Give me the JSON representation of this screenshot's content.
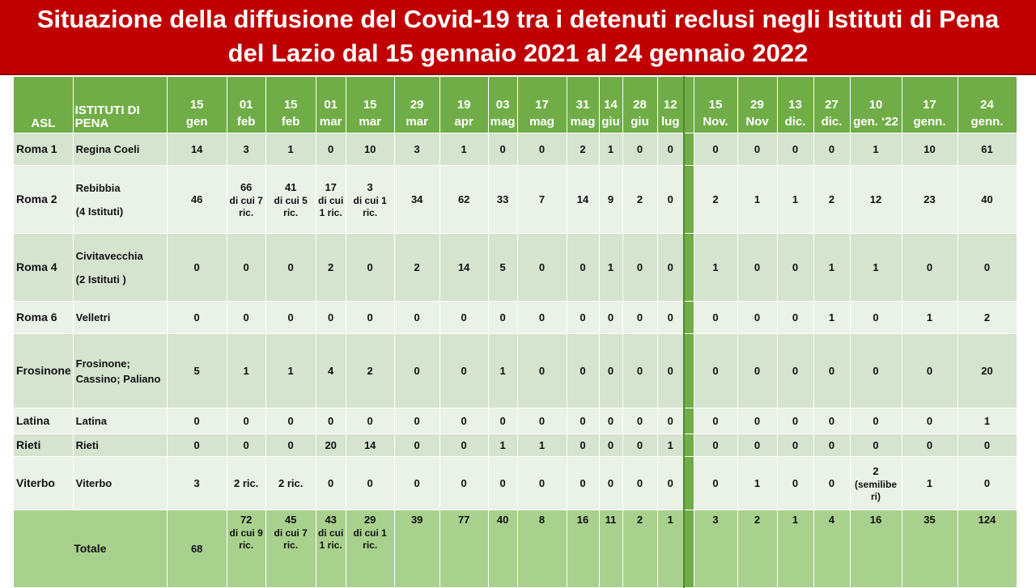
{
  "title": {
    "line1": "Situazione della diffusione del Covid-19 tra i detenuti reclusi negli Istituti di Pena",
    "line2": "del Lazio dal 15 gennaio 2021 al 24 gennaio 2022"
  },
  "colors": {
    "banner": "#c00000",
    "header": "#70ad47",
    "row_dark": "#d5e3cf",
    "row_light": "#eaf1e7",
    "total": "#a9d18e"
  },
  "table": {
    "headers": {
      "asl": "ASL",
      "istituti": "ISTITUTI DI PENA",
      "dates": [
        {
          "d": "15",
          "m": "gen"
        },
        {
          "d": "01",
          "m": "feb"
        },
        {
          "d": "15",
          "m": "feb"
        },
        {
          "d": "01",
          "m": "mar"
        },
        {
          "d": "15",
          "m": "mar"
        },
        {
          "d": "29",
          "m": "mar"
        },
        {
          "d": "19",
          "m": "apr"
        },
        {
          "d": "03",
          "m": "mag"
        },
        {
          "d": "17",
          "m": "mag"
        },
        {
          "d": "31",
          "m": "mag"
        },
        {
          "d": "14",
          "m": "giu"
        },
        {
          "d": "28",
          "m": "giu"
        },
        {
          "d": "12",
          "m": "lug"
        },
        {
          "d": "15",
          "m": "Nov."
        },
        {
          "d": "29",
          "m": "Nov"
        },
        {
          "d": "13",
          "m": "dic."
        },
        {
          "d": "27",
          "m": "dic."
        },
        {
          "d": "10",
          "m": "gen. ‘22"
        },
        {
          "d": "17",
          "m": "genn."
        },
        {
          "d": "24",
          "m": "genn."
        }
      ]
    },
    "rows": [
      {
        "asl": "Roma 1",
        "ist": [
          "Regina Coeli"
        ],
        "cells": [
          [
            "14"
          ],
          [
            "3"
          ],
          [
            "1"
          ],
          [
            "0"
          ],
          [
            "10"
          ],
          [
            "3"
          ],
          [
            "1"
          ],
          [
            "0"
          ],
          [
            "0"
          ],
          [
            "2"
          ],
          [
            "1"
          ],
          [
            "0"
          ],
          [
            "0"
          ],
          [
            "0"
          ],
          [
            "0"
          ],
          [
            "0"
          ],
          [
            "0"
          ],
          [
            "1"
          ],
          [
            "10"
          ],
          [
            "61"
          ]
        ]
      },
      {
        "asl": "Roma 2",
        "ist": [
          "Rebibbia",
          "(4 Istituti)"
        ],
        "cells": [
          [
            "46"
          ],
          [
            "66",
            "di cui 7 ric."
          ],
          [
            "41",
            "di cui 5 ric."
          ],
          [
            "17",
            "di cui 1 ric."
          ],
          [
            "3",
            "di cui 1 ric."
          ],
          [
            "34"
          ],
          [
            "62"
          ],
          [
            "33"
          ],
          [
            "7"
          ],
          [
            "14"
          ],
          [
            "9"
          ],
          [
            "2"
          ],
          [
            "0"
          ],
          [
            "2"
          ],
          [
            "1"
          ],
          [
            "1"
          ],
          [
            "2"
          ],
          [
            "12"
          ],
          [
            "23"
          ],
          [
            "40"
          ]
        ]
      },
      {
        "asl": "Roma 4",
        "ist": [
          "Civitavecchia",
          "(2 Istituti )"
        ],
        "cells": [
          [
            "0"
          ],
          [
            "0"
          ],
          [
            "0"
          ],
          [
            "2"
          ],
          [
            "0"
          ],
          [
            "2"
          ],
          [
            "14"
          ],
          [
            "5"
          ],
          [
            "0"
          ],
          [
            "0"
          ],
          [
            "1"
          ],
          [
            "0"
          ],
          [
            "0"
          ],
          [
            "1"
          ],
          [
            "0"
          ],
          [
            "0"
          ],
          [
            "1"
          ],
          [
            "1"
          ],
          [
            "0"
          ],
          [
            "0"
          ]
        ]
      },
      {
        "asl": "Roma 6",
        "ist": [
          "Velletri"
        ],
        "cells": [
          [
            "0"
          ],
          [
            "0"
          ],
          [
            "0"
          ],
          [
            "0"
          ],
          [
            "0"
          ],
          [
            "0"
          ],
          [
            "0"
          ],
          [
            "0"
          ],
          [
            "0"
          ],
          [
            "0"
          ],
          [
            "0"
          ],
          [
            "0"
          ],
          [
            "0"
          ],
          [
            "0"
          ],
          [
            "0"
          ],
          [
            "0"
          ],
          [
            "1"
          ],
          [
            "0"
          ],
          [
            "1"
          ],
          [
            "2"
          ]
        ]
      },
      {
        "asl": "Frosinone",
        "ist": [
          "Frosinone; Cassino; Paliano"
        ],
        "cells": [
          [
            "5"
          ],
          [
            "1"
          ],
          [
            "1"
          ],
          [
            "4"
          ],
          [
            "2"
          ],
          [
            "0"
          ],
          [
            "0"
          ],
          [
            "1"
          ],
          [
            "0"
          ],
          [
            "0"
          ],
          [
            "0"
          ],
          [
            "0"
          ],
          [
            "0"
          ],
          [
            "0"
          ],
          [
            "0"
          ],
          [
            "0"
          ],
          [
            "0"
          ],
          [
            "0"
          ],
          [
            "0"
          ],
          [
            "20"
          ]
        ]
      },
      {
        "asl": "Latina",
        "ist": [
          "Latina"
        ],
        "cells": [
          [
            "0"
          ],
          [
            "0"
          ],
          [
            "0"
          ],
          [
            "0"
          ],
          [
            "0"
          ],
          [
            "0"
          ],
          [
            "0"
          ],
          [
            "0"
          ],
          [
            "0"
          ],
          [
            "0"
          ],
          [
            "0"
          ],
          [
            "0"
          ],
          [
            "0"
          ],
          [
            "0"
          ],
          [
            "0"
          ],
          [
            "0"
          ],
          [
            "0"
          ],
          [
            "0"
          ],
          [
            "0"
          ],
          [
            "1"
          ]
        ]
      },
      {
        "asl": "Rieti",
        "ist": [
          "Rieti"
        ],
        "cells": [
          [
            "0"
          ],
          [
            "0"
          ],
          [
            "0"
          ],
          [
            "20"
          ],
          [
            "14"
          ],
          [
            "0"
          ],
          [
            "0"
          ],
          [
            "1"
          ],
          [
            "1"
          ],
          [
            "0"
          ],
          [
            "0"
          ],
          [
            "0"
          ],
          [
            "1"
          ],
          [
            "0"
          ],
          [
            "0"
          ],
          [
            "0"
          ],
          [
            "0"
          ],
          [
            "0"
          ],
          [
            "0"
          ],
          [
            "0"
          ]
        ]
      },
      {
        "asl": "Viterbo",
        "ist": [
          "Viterbo"
        ],
        "cells": [
          [
            "3"
          ],
          [
            "2 ric."
          ],
          [
            "2 ric."
          ],
          [
            "0"
          ],
          [
            "0"
          ],
          [
            "0"
          ],
          [
            "0"
          ],
          [
            "0"
          ],
          [
            "0"
          ],
          [
            "0"
          ],
          [
            "0"
          ],
          [
            "0"
          ],
          [
            "0"
          ],
          [
            "0"
          ],
          [
            "1"
          ],
          [
            "0"
          ],
          [
            "0"
          ],
          [
            "2",
            "(semilibe ri)"
          ],
          [
            "1"
          ],
          [
            "0"
          ]
        ]
      }
    ],
    "total": {
      "label": "Totale",
      "cells": [
        [
          "68"
        ],
        [
          "72",
          "di cui 9 ric."
        ],
        [
          "45",
          "di cui 7 ric."
        ],
        [
          "43",
          "di cui 1 ric."
        ],
        [
          "29",
          "di cui 1 ric."
        ],
        [
          "39"
        ],
        [
          "77"
        ],
        [
          "40"
        ],
        [
          "8"
        ],
        [
          "16"
        ],
        [
          "11"
        ],
        [
          "2"
        ],
        [
          "1"
        ],
        [
          "3"
        ],
        [
          "2"
        ],
        [
          "1"
        ],
        [
          "4"
        ],
        [
          "16"
        ],
        [
          "35"
        ],
        [
          "124"
        ]
      ]
    }
  }
}
